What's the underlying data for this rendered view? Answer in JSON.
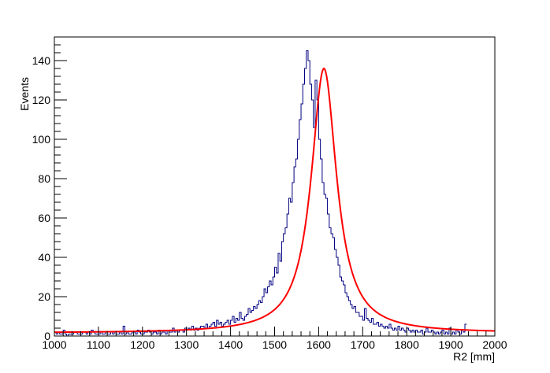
{
  "chart_data": {
    "type": "histogram",
    "title": "",
    "xlabel": "R2 [mm]",
    "ylabel": "Events",
    "xlim": [
      1000,
      2000
    ],
    "ylim": [
      0,
      152
    ],
    "x_ticks": [
      1000,
      1100,
      1200,
      1300,
      1400,
      1500,
      1600,
      1700,
      1800,
      1900,
      2000
    ],
    "y_ticks": [
      0,
      20,
      40,
      60,
      80,
      100,
      120,
      140
    ],
    "grid": false,
    "legend": "none",
    "colors": {
      "histogram": "#000080",
      "fit": "#ff0000",
      "axes": "#000000"
    },
    "series": [
      {
        "kind": "histogram",
        "bin_low": 1000,
        "bin_width": 4,
        "counts": [
          2,
          1,
          2,
          1,
          1,
          3,
          1,
          0,
          1,
          1,
          1,
          2,
          2,
          1,
          1,
          1,
          2,
          2,
          1,
          2,
          1,
          3,
          2,
          1,
          1,
          1,
          2,
          1,
          1,
          2,
          1,
          1,
          2,
          1,
          2,
          1,
          1,
          2,
          1,
          5,
          1,
          2,
          1,
          1,
          2,
          2,
          1,
          3,
          2,
          1,
          1,
          2,
          2,
          3,
          2,
          1,
          2,
          2,
          1,
          3,
          1,
          2,
          2,
          1,
          3,
          2,
          2,
          4,
          2,
          3,
          2,
          3,
          3,
          2,
          4,
          3,
          4,
          3,
          5,
          3,
          4,
          3,
          4,
          5,
          5,
          4,
          6,
          4,
          5,
          6,
          7,
          5,
          8,
          6,
          7,
          5,
          6,
          7,
          8,
          6,
          8,
          10,
          7,
          9,
          8,
          12,
          9,
          8,
          10,
          11,
          14,
          12,
          13,
          15,
          14,
          16,
          18,
          17,
          20,
          24,
          22,
          25,
          28,
          26,
          30,
          35,
          32,
          42,
          38,
          48,
          52,
          55,
          62,
          70,
          68,
          78,
          86,
          90,
          100,
          110,
          118,
          128,
          136,
          145,
          140,
          128,
          120,
          106,
          130,
          120,
          100,
          90,
          78,
          72,
          70,
          62,
          55,
          52,
          50,
          44,
          40,
          36,
          30,
          28,
          26,
          22,
          20,
          18,
          16,
          14,
          15,
          12,
          12,
          10,
          10,
          8,
          14,
          9,
          8,
          7,
          9,
          6,
          6,
          7,
          5,
          6,
          5,
          4,
          5,
          4,
          6,
          4,
          3,
          4,
          3,
          5,
          3,
          4,
          3,
          2,
          4,
          3,
          2,
          3,
          2,
          3,
          2,
          2,
          3,
          1,
          2,
          4,
          2,
          2,
          3,
          2,
          1,
          2,
          1,
          2,
          3,
          1,
          2,
          1,
          4,
          1,
          2,
          1,
          3,
          2,
          1,
          3,
          2,
          6
        ]
      },
      {
        "kind": "fit",
        "name": "",
        "function": "lorentzian",
        "peak": 136,
        "mean": 1612,
        "half_width": 35,
        "baseline": 1.5
      }
    ]
  }
}
